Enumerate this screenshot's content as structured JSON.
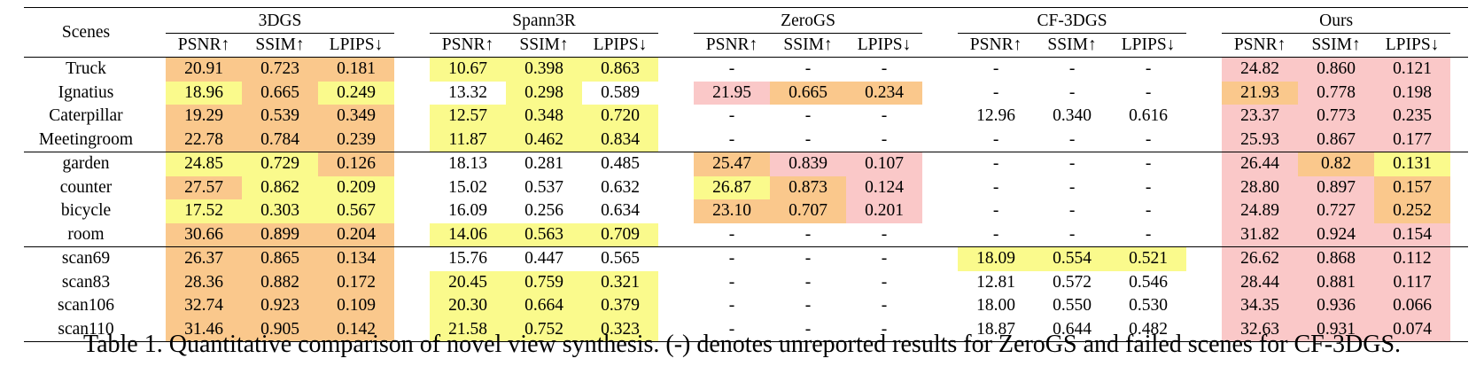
{
  "colors": {
    "yellow": "#fafa8c",
    "orange": "#fac88c",
    "pink": "#fac8c8"
  },
  "header": {
    "scenes_label": "Scenes",
    "methods": [
      "3DGS",
      "Spann3R",
      "ZeroGS",
      "CF-3DGS",
      "Ours"
    ],
    "metrics": [
      "PSNR↑",
      "SSIM↑",
      "LPIPS↓"
    ]
  },
  "groups": [
    [
      {
        "scene": "Truck",
        "values": [
          "20.91",
          "0.723",
          "0.181",
          "10.67",
          "0.398",
          "0.863",
          "-",
          "-",
          "-",
          "-",
          "-",
          "-",
          "24.82",
          "0.860",
          "0.121"
        ],
        "hl": [
          "o",
          "o",
          "o",
          "y",
          "y",
          "y",
          "",
          "",
          "",
          "",
          "",
          "",
          "p",
          "p",
          "p"
        ]
      },
      {
        "scene": "Ignatius",
        "values": [
          "18.96",
          "0.665",
          "0.249",
          "13.32",
          "0.298",
          "0.589",
          "21.95",
          "0.665",
          "0.234",
          "-",
          "-",
          "-",
          "21.93",
          "0.778",
          "0.198"
        ],
        "hl": [
          "y",
          "o",
          "y",
          "",
          "y",
          "",
          "p",
          "o",
          "o",
          "",
          "",
          "",
          "o",
          "p",
          "p"
        ]
      },
      {
        "scene": "Caterpillar",
        "values": [
          "19.29",
          "0.539",
          "0.349",
          "12.57",
          "0.348",
          "0.720",
          "-",
          "-",
          "-",
          "12.96",
          "0.340",
          "0.616",
          "23.37",
          "0.773",
          "0.235"
        ],
        "hl": [
          "o",
          "o",
          "o",
          "y",
          "y",
          "y",
          "",
          "",
          "",
          "",
          "",
          "",
          "p",
          "p",
          "p"
        ]
      },
      {
        "scene": "Meetingroom",
        "values": [
          "22.78",
          "0.784",
          "0.239",
          "11.87",
          "0.462",
          "0.834",
          "-",
          "-",
          "-",
          "-",
          "-",
          "-",
          "25.93",
          "0.867",
          "0.177"
        ],
        "hl": [
          "o",
          "o",
          "o",
          "y",
          "y",
          "y",
          "",
          "",
          "",
          "",
          "",
          "",
          "p",
          "p",
          "p"
        ]
      }
    ],
    [
      {
        "scene": "garden",
        "values": [
          "24.85",
          "0.729",
          "0.126",
          "18.13",
          "0.281",
          "0.485",
          "25.47",
          "0.839",
          "0.107",
          "-",
          "-",
          "-",
          "26.44",
          "0.82",
          "0.131"
        ],
        "hl": [
          "y",
          "y",
          "o",
          "",
          "",
          "",
          "o",
          "p",
          "p",
          "",
          "",
          "",
          "p",
          "o",
          "y"
        ]
      },
      {
        "scene": "counter",
        "values": [
          "27.57",
          "0.862",
          "0.209",
          "15.02",
          "0.537",
          "0.632",
          "26.87",
          "0.873",
          "0.124",
          "-",
          "-",
          "-",
          "28.80",
          "0.897",
          "0.157"
        ],
        "hl": [
          "o",
          "y",
          "y",
          "",
          "",
          "",
          "y",
          "o",
          "p",
          "",
          "",
          "",
          "p",
          "p",
          "o"
        ]
      },
      {
        "scene": "bicycle",
        "values": [
          "17.52",
          "0.303",
          "0.567",
          "16.09",
          "0.256",
          "0.634",
          "23.10",
          "0.707",
          "0.201",
          "-",
          "-",
          "-",
          "24.89",
          "0.727",
          "0.252"
        ],
        "hl": [
          "y",
          "y",
          "y",
          "",
          "",
          "",
          "o",
          "o",
          "p",
          "",
          "",
          "",
          "p",
          "p",
          "o"
        ]
      },
      {
        "scene": "room",
        "values": [
          "30.66",
          "0.899",
          "0.204",
          "14.06",
          "0.563",
          "0.709",
          "-",
          "-",
          "-",
          "-",
          "-",
          "-",
          "31.82",
          "0.924",
          "0.154"
        ],
        "hl": [
          "o",
          "o",
          "o",
          "y",
          "y",
          "y",
          "",
          "",
          "",
          "",
          "",
          "",
          "p",
          "p",
          "p"
        ]
      }
    ],
    [
      {
        "scene": "scan69",
        "values": [
          "26.37",
          "0.865",
          "0.134",
          "15.76",
          "0.447",
          "0.565",
          "-",
          "-",
          "-",
          "18.09",
          "0.554",
          "0.521",
          "26.62",
          "0.868",
          "0.112"
        ],
        "hl": [
          "o",
          "o",
          "o",
          "",
          "",
          "",
          "",
          "",
          "",
          "y",
          "y",
          "y",
          "p",
          "p",
          "p"
        ]
      },
      {
        "scene": "scan83",
        "values": [
          "28.36",
          "0.882",
          "0.172",
          "20.45",
          "0.759",
          "0.321",
          "-",
          "-",
          "-",
          "12.81",
          "0.572",
          "0.546",
          "28.44",
          "0.881",
          "0.117"
        ],
        "hl": [
          "o",
          "o",
          "o",
          "y",
          "y",
          "y",
          "",
          "",
          "",
          "",
          "",
          "",
          "p",
          "p",
          "p"
        ]
      },
      {
        "scene": "scan106",
        "values": [
          "32.74",
          "0.923",
          "0.109",
          "20.30",
          "0.664",
          "0.379",
          "-",
          "-",
          "-",
          "18.00",
          "0.550",
          "0.530",
          "34.35",
          "0.936",
          "0.066"
        ],
        "hl": [
          "o",
          "o",
          "o",
          "y",
          "y",
          "y",
          "",
          "",
          "",
          "",
          "",
          "",
          "p",
          "p",
          "p"
        ]
      },
      {
        "scene": "scan110",
        "values": [
          "31.46",
          "0.905",
          "0.142",
          "21.58",
          "0.752",
          "0.323",
          "-",
          "-",
          "-",
          "18.87",
          "0.644",
          "0.482",
          "32.63",
          "0.931",
          "0.074"
        ],
        "hl": [
          "o",
          "o",
          "o",
          "y",
          "y",
          "y",
          "",
          "",
          "",
          "",
          "",
          "",
          "p",
          "p",
          "p"
        ]
      }
    ]
  ],
  "caption": "Table 1. Quantitative comparison of novel view synthesis. (-) denotes unreported results for ZeroGS and failed scenes for CF-3DGS."
}
